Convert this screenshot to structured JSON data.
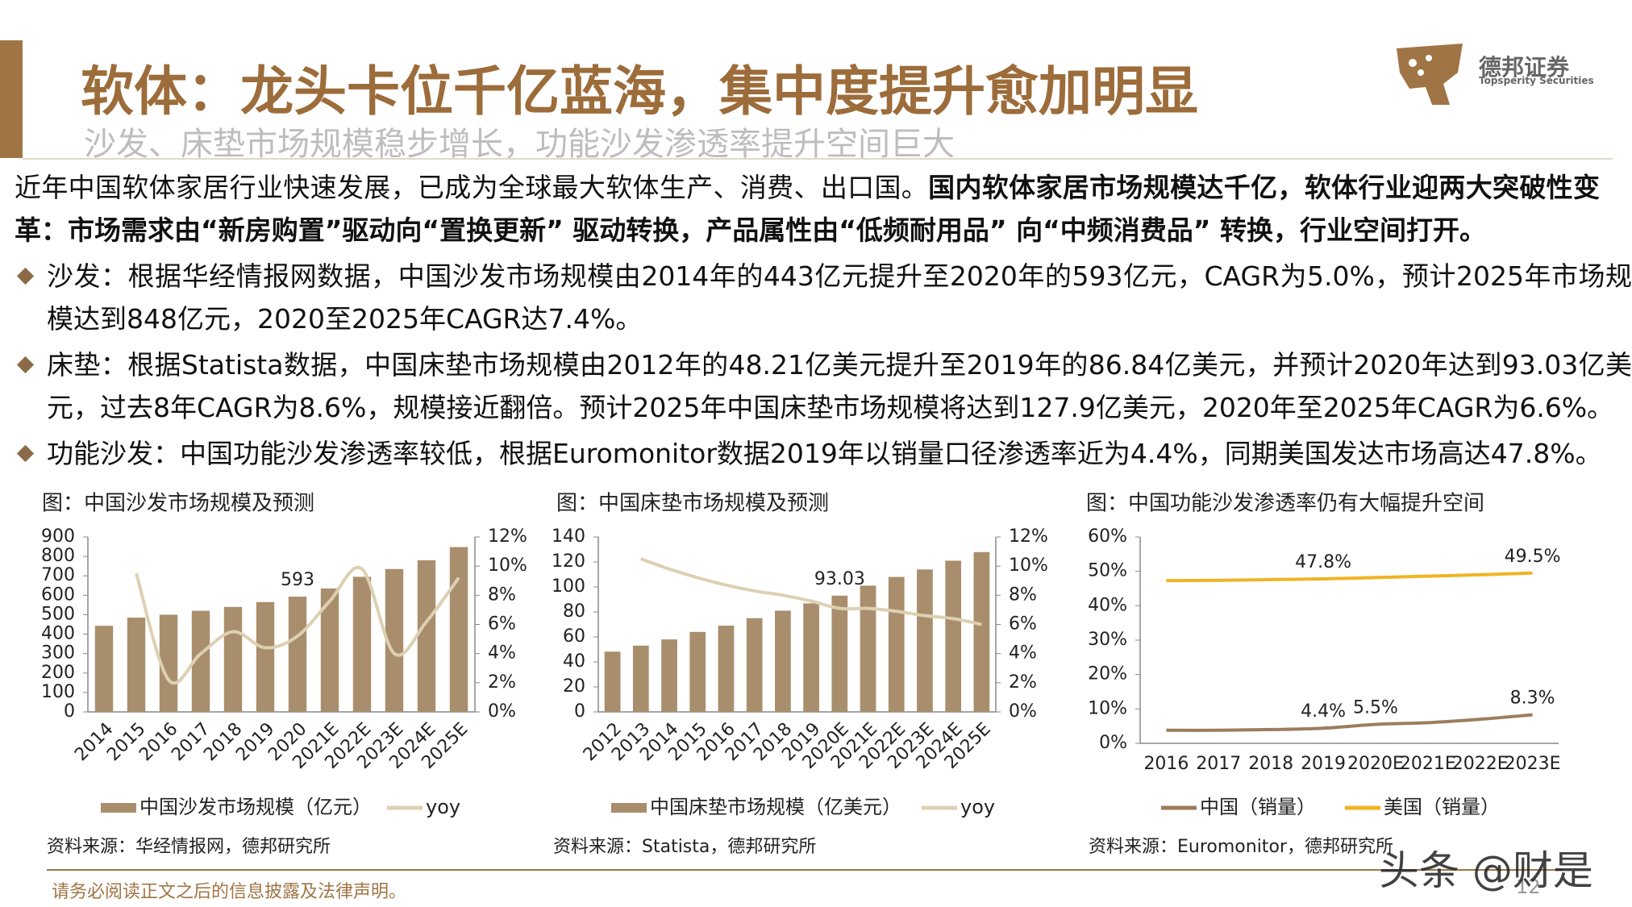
{
  "header": {
    "title": "软体：龙头卡位千亿蓝海，集中度提升愈加明显",
    "subtitle": "沙发、床垫市场规模稳步增长，功能沙发渗透率提升空间巨大"
  },
  "logo": {
    "name": "德邦证券",
    "english": "Topsperity Securities"
  },
  "intro": {
    "text": "近年中国软体家居行业快速发展，已成为全球最大软体生产、消费、出口国。",
    "bold": "国内软体家居市场规模达千亿，软体行业迎两大突破性变革：市场需求由“新房购置”驱动向“置换更新” 驱动转换，产品属性由“低频耐用品” 向“中频消费品” 转换，行业空间打开。"
  },
  "bullets": [
    "沙发：根据华经情报网数据，中国沙发市场规模由2014年的443亿元提升至2020年的593亿元，CAGR为5.0%，预计2025年市场规模达到848亿元，2020至2025年CAGR达7.4%。",
    "床垫：根据Statista数据，中国床垫市场规模由2012年的48.21亿美元提升至2019年的86.84亿美元，并预计2020年达到93.03亿美元，过去8年CAGR为8.6%，规模接近翻倍。预计2025年中国床垫市场规模将达到127.9亿美元，2020年至2025年CAGR为6.6%。",
    "功能沙发：中国功能沙发渗透率较低，根据Euromonitor数据2019年以销量口径渗透率近为4.4%，同期美国发达市场高达47.8%。"
  ],
  "chart_data": [
    {
      "type": "bar",
      "title": "图：中国沙发市场规模及预测",
      "source": "资料来源：华经情报网，德邦研究所",
      "categories": [
        "2014",
        "2015",
        "2016",
        "2017",
        "2018",
        "2019",
        "2020",
        "2021E",
        "2022E",
        "2023E",
        "2024E",
        "2025E"
      ],
      "series": [
        {
          "name": "中国沙发市场规模（亿元）",
          "type": "bar",
          "color": "#A98E6D",
          "values": [
            443,
            485,
            500,
            520,
            540,
            565,
            593,
            635,
            695,
            735,
            780,
            848
          ],
          "value_labels": [
            null,
            null,
            null,
            null,
            null,
            null,
            "593",
            null,
            null,
            null,
            null,
            null
          ]
        },
        {
          "name": "yoy",
          "type": "line",
          "axis": "y2",
          "color": "#DDD0B2",
          "values": [
            null,
            9.5,
            2.2,
            4.0,
            5.5,
            4.4,
            5.2,
            7.6,
            9.8,
            4.0,
            6.2,
            9.2
          ]
        }
      ],
      "ylim": [
        0,
        900
      ],
      "yticks": [
        0,
        100,
        200,
        300,
        400,
        500,
        600,
        700,
        800,
        900
      ],
      "y2lim": [
        0,
        12
      ],
      "y2ticks": [
        {
          "value": 0,
          "label": "0%"
        },
        {
          "value": 2,
          "label": "2%"
        },
        {
          "value": 4,
          "label": "4%"
        },
        {
          "value": 6,
          "label": "6%"
        },
        {
          "value": 8,
          "label": "8%"
        },
        {
          "value": 10,
          "label": "10%"
        },
        {
          "value": 12,
          "label": "12%"
        }
      ]
    },
    {
      "type": "bar",
      "title": "图：中国床垫市场规模及预测",
      "source": "资料来源：Statista，德邦研究所",
      "categories": [
        "2012",
        "2013",
        "2014",
        "2015",
        "2016",
        "2017",
        "2018",
        "2019",
        "2020E",
        "2021E",
        "2022E",
        "2023E",
        "2024E",
        "2025E"
      ],
      "series": [
        {
          "name": "中国床垫市场规模（亿美元）",
          "type": "bar",
          "color": "#A98E6D",
          "values": [
            48.21,
            53,
            58,
            64,
            69,
            75,
            81,
            86.84,
            93.03,
            101,
            108,
            114,
            121,
            127.9
          ],
          "value_labels": [
            null,
            null,
            null,
            null,
            null,
            null,
            null,
            null,
            "93.03",
            null,
            null,
            null,
            null,
            null
          ]
        },
        {
          "name": "yoy",
          "type": "line",
          "axis": "y2",
          "color": "#DDD0B2",
          "values": [
            null,
            10.5,
            9.8,
            9.2,
            8.7,
            8.3,
            8.0,
            7.6,
            7.1,
            7.1,
            6.9,
            6.6,
            6.4,
            6.0
          ]
        }
      ],
      "ylim": [
        0,
        140
      ],
      "yticks": [
        0,
        20,
        40,
        60,
        80,
        100,
        120,
        140
      ],
      "y2lim": [
        0,
        12
      ],
      "y2ticks": [
        {
          "value": 0,
          "label": "0%"
        },
        {
          "value": 2,
          "label": "2%"
        },
        {
          "value": 4,
          "label": "4%"
        },
        {
          "value": 6,
          "label": "6%"
        },
        {
          "value": 8,
          "label": "8%"
        },
        {
          "value": 10,
          "label": "10%"
        },
        {
          "value": 12,
          "label": "12%"
        }
      ]
    },
    {
      "type": "line",
      "title": "图：中国功能沙发渗透率仍有大幅提升空间",
      "source": "资料来源：Euromonitor，德邦研究所",
      "categories": [
        "2016",
        "2017",
        "2018",
        "2019",
        "2020E",
        "2021E",
        "2022E",
        "2023E"
      ],
      "series": [
        {
          "name": "中国（销量）",
          "color": "#9C7D5D",
          "values": [
            3.8,
            3.8,
            4.0,
            4.4,
            5.5,
            6.0,
            7.0,
            8.3
          ],
          "value_labels": [
            null,
            null,
            null,
            "4.4%",
            "5.5%",
            null,
            null,
            "8.3%"
          ]
        },
        {
          "name": "美国（销量）",
          "color": "#F0B323",
          "values": [
            47.3,
            47.4,
            47.6,
            47.8,
            48.2,
            48.6,
            49.0,
            49.5
          ],
          "value_labels": [
            null,
            null,
            null,
            "47.8%",
            null,
            null,
            null,
            "49.5%"
          ]
        }
      ],
      "ylim": [
        0,
        60
      ],
      "yticks": [
        {
          "value": 0,
          "label": "0%"
        },
        {
          "value": 10,
          "label": "10%"
        },
        {
          "value": 20,
          "label": "20%"
        },
        {
          "value": 30,
          "label": "30%"
        },
        {
          "value": 40,
          "label": "40%"
        },
        {
          "value": 50,
          "label": "50%"
        },
        {
          "value": 60,
          "label": "60%"
        }
      ]
    }
  ],
  "footer": {
    "disclaimer": "请务必阅读正文之后的信息披露及法律声明。",
    "page": "12"
  },
  "watermark": "头条 @财是"
}
